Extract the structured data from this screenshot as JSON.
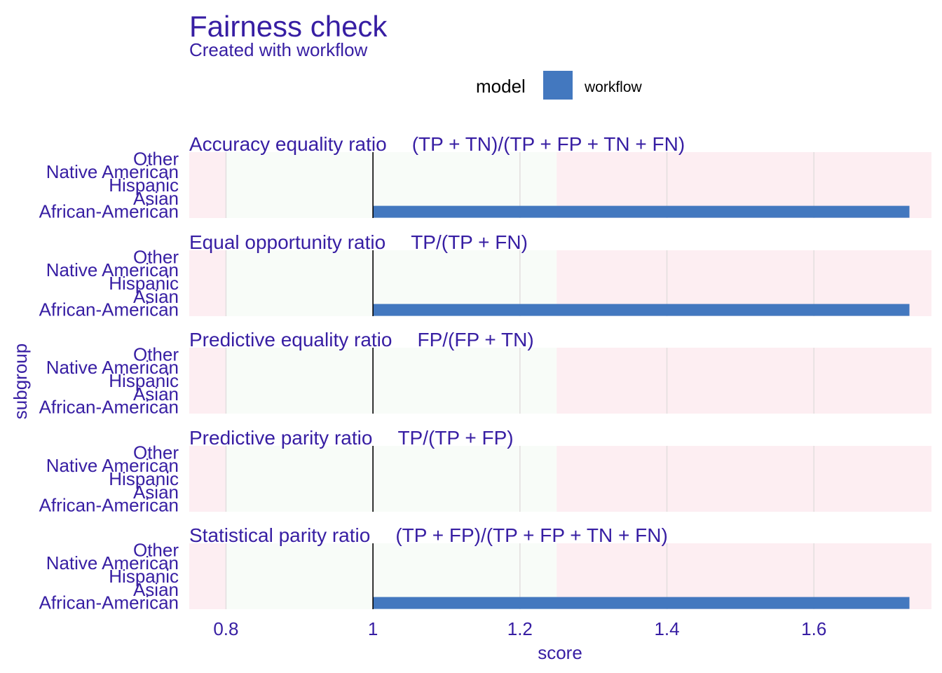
{
  "title": "Fairness check",
  "subtitle": "Created with workflow",
  "legend": {
    "title": "model",
    "items": [
      {
        "label": "workflow",
        "color": "#4378bf"
      }
    ]
  },
  "colors": {
    "text": "#371ea3",
    "bar": "#4378bf",
    "fair_zone": "#f8fcf8",
    "unfair_zone": "#fdeef2",
    "grid": "#e2dede",
    "reference_line": "#000000"
  },
  "chart_data": {
    "type": "bar",
    "orientation": "horizontal",
    "title": "Fairness check",
    "subtitle": "Created with workflow",
    "xlabel": "score",
    "ylabel": "subgroup",
    "xlim": [
      0.75,
      1.76
    ],
    "xticks": [
      0.8,
      1,
      1.2,
      1.4,
      1.6
    ],
    "xtick_labels": [
      "0.8",
      "1",
      "1.2",
      "1.4",
      "1.6"
    ],
    "reference_value": 1,
    "fair_range": [
      0.8,
      1.25
    ],
    "grid": true,
    "legend_position": "top",
    "categories": [
      "Other",
      "Native American",
      "Hispanic",
      "Asian",
      "African-American"
    ],
    "series": [
      {
        "name": "workflow",
        "color": "#4378bf"
      }
    ],
    "panels": [
      {
        "metric": "Accuracy equality ratio",
        "formula": "(TP + TN)/(TP + FP + TN + FN)",
        "values": {
          "African-American": 1.73
        }
      },
      {
        "metric": "Equal opportunity ratio",
        "formula": "TP/(TP + FN)",
        "values": {
          "African-American": 1.73
        }
      },
      {
        "metric": "Predictive equality ratio",
        "formula": "FP/(FP + TN)",
        "values": {}
      },
      {
        "metric": "Predictive parity ratio",
        "formula": "TP/(TP + FP)",
        "values": {}
      },
      {
        "metric": "Statistical parity ratio",
        "formula": "(TP + FP)/(TP + FP + TN + FN)",
        "values": {
          "African-American": 1.73
        }
      }
    ]
  }
}
